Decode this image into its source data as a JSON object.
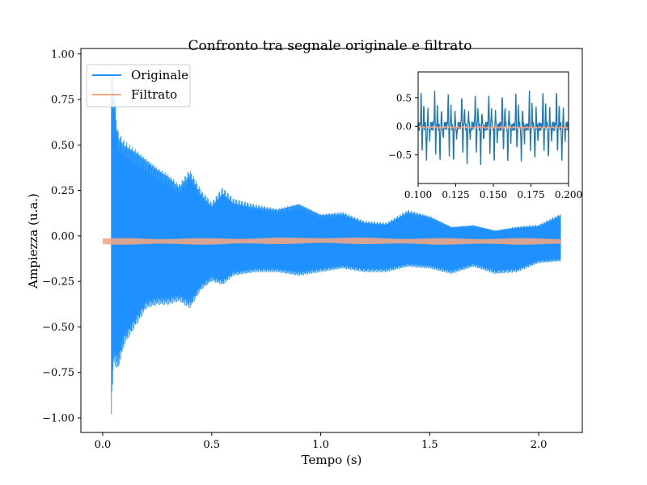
{
  "chart_data": [
    {
      "type": "line",
      "title": "Confronto tra segnale originale e filtrato",
      "xlabel": "Tempo (s)",
      "ylabel": "Ampiezza (u.a.)",
      "xlim": [
        -0.1,
        2.2
      ],
      "ylim": [
        -1.08,
        1.03
      ],
      "xticks": [
        0.0,
        0.5,
        1.0,
        1.5,
        2.0
      ],
      "xtick_labels": [
        "0.0",
        "0.5",
        "1.0",
        "1.5",
        "2.0"
      ],
      "yticks": [
        1.0,
        0.75,
        0.5,
        0.25,
        0.0,
        -0.25,
        -0.5,
        -0.75,
        -1.0
      ],
      "ytick_labels": [
        "1.00",
        "0.75",
        "0.50",
        "0.25",
        "0.00",
        "−0.25",
        "−0.50",
        "−0.75",
        "−1.00"
      ],
      "grid": false,
      "legend_position": "top-left",
      "series": [
        {
          "name": "Originale",
          "color": "#1E90FF",
          "style": "dense oscillation envelope",
          "onset": 0.04,
          "end": 2.1,
          "t": [
            0.04,
            0.05,
            0.07,
            0.1,
            0.15,
            0.2,
            0.25,
            0.3,
            0.35,
            0.4,
            0.45,
            0.5,
            0.55,
            0.6,
            0.7,
            0.8,
            0.9,
            1.0,
            1.1,
            1.2,
            1.3,
            1.4,
            1.5,
            1.6,
            1.7,
            1.8,
            1.9,
            2.0,
            2.1
          ],
          "upper": [
            0.92,
            0.83,
            0.57,
            0.52,
            0.48,
            0.43,
            0.38,
            0.34,
            0.28,
            0.36,
            0.25,
            0.18,
            0.26,
            0.2,
            0.17,
            0.15,
            0.18,
            0.12,
            0.13,
            0.08,
            0.07,
            0.14,
            0.11,
            0.05,
            0.06,
            0.03,
            0.05,
            0.06,
            0.12
          ],
          "lower": [
            -0.98,
            -0.7,
            -0.74,
            -0.6,
            -0.5,
            -0.4,
            -0.38,
            -0.38,
            -0.36,
            -0.4,
            -0.3,
            -0.25,
            -0.27,
            -0.22,
            -0.2,
            -0.2,
            -0.22,
            -0.2,
            -0.18,
            -0.2,
            -0.2,
            -0.17,
            -0.18,
            -0.21,
            -0.17,
            -0.21,
            -0.2,
            -0.15,
            -0.14
          ]
        },
        {
          "name": "Filtrato",
          "color": "#F4A582",
          "style": "thick low-amplitude band",
          "t": [
            0.0,
            0.5,
            1.0,
            1.5,
            2.1
          ],
          "values": [
            -0.03,
            -0.03,
            -0.025,
            -0.03,
            -0.03
          ],
          "band_half_width": 0.018
        }
      ]
    },
    {
      "type": "line",
      "title": "",
      "xlabel": "",
      "ylabel": "",
      "xlim": [
        0.1,
        0.2
      ],
      "ylim": [
        -1.0,
        0.95
      ],
      "xticks": [
        0.1,
        0.125,
        0.15,
        0.175,
        0.2
      ],
      "xtick_labels": [
        "0.100",
        "0.125",
        "0.150",
        "0.175",
        "0.200"
      ],
      "yticks": [
        0.5,
        0.0,
        -0.5
      ],
      "ytick_labels": [
        "0.5",
        "0.0",
        "−0.5"
      ],
      "series": [
        {
          "color": "#1F77B4",
          "style": "periodic oscillation",
          "period": 0.009,
          "peak_max": 0.56,
          "peak_min": -0.6
        },
        {
          "color": "#F4A582",
          "style": "near-zero filtered line",
          "values_near": -0.02
        }
      ]
    }
  ]
}
